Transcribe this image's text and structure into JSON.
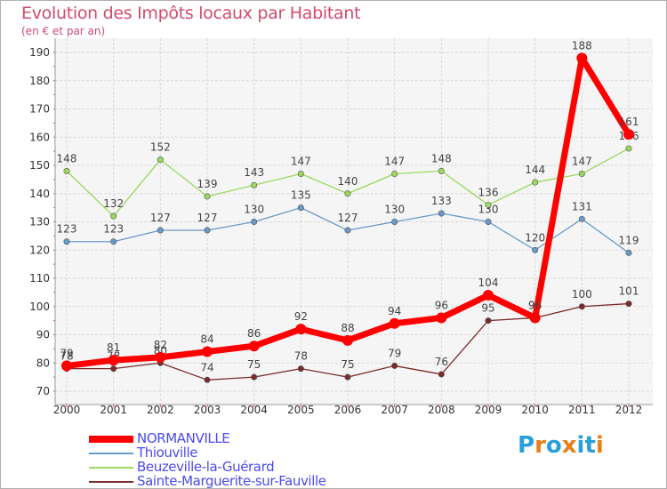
{
  "title": "Evolution des Impôts locaux par Habitant",
  "subtitle": "(en € et par an)",
  "chart_data": {
    "type": "line",
    "x": [
      "2000",
      "2001",
      "2002",
      "2003",
      "2004",
      "2005",
      "2006",
      "2007",
      "2008",
      "2009",
      "2010",
      "2011",
      "2012"
    ],
    "ylim": [
      70,
      190
    ],
    "yticks": [
      70,
      80,
      90,
      100,
      110,
      120,
      130,
      140,
      150,
      160,
      170,
      180,
      190
    ],
    "grid": true,
    "series": [
      {
        "name": "NORMANVILLE",
        "color": "#ff0000",
        "values": [
          79,
          81,
          82,
          84,
          86,
          92,
          88,
          94,
          96,
          104,
          96,
          188,
          161
        ]
      },
      {
        "name": "Thiouville",
        "color": "#6a9ac8",
        "values": [
          123,
          123,
          127,
          127,
          130,
          135,
          127,
          130,
          133,
          130,
          120,
          131,
          119
        ]
      },
      {
        "name": "Beuzeville-la-Guérard",
        "color": "#9ad85e",
        "values": [
          148,
          132,
          152,
          139,
          143,
          147,
          140,
          147,
          148,
          136,
          144,
          147,
          156
        ]
      },
      {
        "name": "Sainte-Marguerite-sur-Fauville",
        "color": "#7a2a2a",
        "values": [
          78,
          78,
          80,
          74,
          75,
          78,
          75,
          79,
          76,
          95,
          96,
          100,
          101
        ]
      }
    ]
  },
  "logo": {
    "text": "Proxiti",
    "colors": [
      "#2aa0d8",
      "#e8801a",
      "#2aa0d8",
      "#e8801a",
      "#2aa0d8",
      "#2aa0d8",
      "#e8801a"
    ]
  }
}
